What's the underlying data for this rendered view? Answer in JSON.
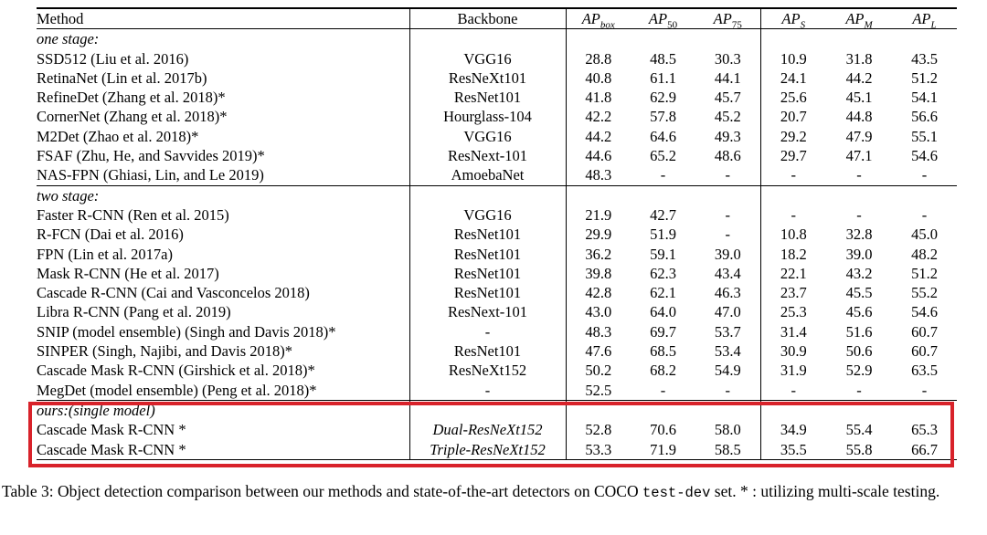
{
  "colors": {
    "highlight_border": "#d8222a",
    "rule": "#000000"
  },
  "table": {
    "columns": [
      {
        "key": "method",
        "label": "Method"
      },
      {
        "key": "backbone",
        "label": "Backbone"
      },
      {
        "key": "ap_box",
        "base": "AP",
        "sub": "box",
        "sub_style": "italic"
      },
      {
        "key": "ap_50",
        "base": "AP",
        "sub": "50",
        "sub_style": "normal"
      },
      {
        "key": "ap_75",
        "base": "AP",
        "sub": "75",
        "sub_style": "normal"
      },
      {
        "key": "ap_s",
        "base": "AP",
        "sub": "S",
        "sub_style": "italic"
      },
      {
        "key": "ap_m",
        "base": "AP",
        "sub": "M",
        "sub_style": "italic"
      },
      {
        "key": "ap_l",
        "base": "AP",
        "sub": "L",
        "sub_style": "italic"
      }
    ],
    "sections": [
      {
        "label": "one stage:",
        "highlighted": false,
        "rows": [
          {
            "method": "SSD512 (Liu et al. 2016)",
            "backbone": "VGG16",
            "emphasis": false,
            "values": [
              "28.8",
              "48.5",
              "30.3",
              "10.9",
              "31.8",
              "43.5"
            ]
          },
          {
            "method": "RetinaNet (Lin et al. 2017b)",
            "backbone": "ResNeXt101",
            "emphasis": false,
            "values": [
              "40.8",
              "61.1",
              "44.1",
              "24.1",
              "44.2",
              "51.2"
            ]
          },
          {
            "method": "RefineDet (Zhang et al. 2018)*",
            "backbone": "ResNet101",
            "emphasis": false,
            "values": [
              "41.8",
              "62.9",
              "45.7",
              "25.6",
              "45.1",
              "54.1"
            ]
          },
          {
            "method": "CornerNet (Zhang et al. 2018)*",
            "backbone": "Hourglass-104",
            "emphasis": false,
            "values": [
              "42.2",
              "57.8",
              "45.2",
              "20.7",
              "44.8",
              "56.6"
            ]
          },
          {
            "method": "M2Det (Zhao et al. 2018)*",
            "backbone": "VGG16",
            "emphasis": false,
            "values": [
              "44.2",
              "64.6",
              "49.3",
              "29.2",
              "47.9",
              "55.1"
            ]
          },
          {
            "method": "FSAF (Zhu, He, and Savvides 2019)*",
            "backbone": "ResNext-101",
            "emphasis": false,
            "values": [
              "44.6",
              "65.2",
              "48.6",
              "29.7",
              "47.1",
              "54.6"
            ]
          },
          {
            "method": "NAS-FPN (Ghiasi, Lin, and Le 2019)",
            "backbone": "AmoebaNet",
            "emphasis": false,
            "values": [
              "48.3",
              "-",
              "-",
              "-",
              "-",
              "-"
            ]
          }
        ]
      },
      {
        "label": "two stage:",
        "highlighted": false,
        "rows": [
          {
            "method": "Faster R-CNN (Ren et al. 2015)",
            "backbone": "VGG16",
            "emphasis": false,
            "values": [
              "21.9",
              "42.7",
              "-",
              "-",
              "-",
              "-"
            ]
          },
          {
            "method": "R-FCN (Dai et al. 2016)",
            "backbone": "ResNet101",
            "emphasis": false,
            "values": [
              "29.9",
              "51.9",
              "-",
              "10.8",
              "32.8",
              "45.0"
            ]
          },
          {
            "method": "FPN (Lin et al. 2017a)",
            "backbone": "ResNet101",
            "emphasis": false,
            "values": [
              "36.2",
              "59.1",
              "39.0",
              "18.2",
              "39.0",
              "48.2"
            ]
          },
          {
            "method": "Mask R-CNN (He et al. 2017)",
            "backbone": "ResNet101",
            "emphasis": false,
            "values": [
              "39.8",
              "62.3",
              "43.4",
              "22.1",
              "43.2",
              "51.2"
            ]
          },
          {
            "method": "Cascade R-CNN (Cai and Vasconcelos 2018)",
            "backbone": "ResNet101",
            "emphasis": false,
            "values": [
              "42.8",
              "62.1",
              "46.3",
              "23.7",
              "45.5",
              "55.2"
            ]
          },
          {
            "method": "Libra R-CNN (Pang et al. 2019)",
            "backbone": "ResNext-101",
            "emphasis": false,
            "values": [
              "43.0",
              "64.0",
              "47.0",
              "25.3",
              "45.6",
              "54.6"
            ]
          },
          {
            "method": "SNIP (model ensemble) (Singh and Davis 2018)*",
            "backbone": "-",
            "emphasis": false,
            "values": [
              "48.3",
              "69.7",
              "53.7",
              "31.4",
              "51.6",
              "60.7"
            ]
          },
          {
            "method": "SINPER (Singh, Najibi, and Davis 2018)*",
            "backbone": "ResNet101",
            "emphasis": false,
            "values": [
              "47.6",
              "68.5",
              "53.4",
              "30.9",
              "50.6",
              "60.7"
            ]
          },
          {
            "method": "Cascade Mask R-CNN (Girshick et al. 2018)*",
            "backbone": "ResNeXt152",
            "emphasis": false,
            "values": [
              "50.2",
              "68.2",
              "54.9",
              "31.9",
              "52.9",
              "63.5"
            ]
          },
          {
            "method": "MegDet (model ensemble) (Peng et al. 2018)*",
            "backbone": "-",
            "emphasis": false,
            "values": [
              "52.5",
              "-",
              "-",
              "-",
              "-",
              "-"
            ]
          }
        ]
      },
      {
        "label": "ours:(single model)",
        "highlighted": true,
        "rows": [
          {
            "method": "Cascade Mask R-CNN *",
            "backbone": "Dual-ResNeXt152",
            "emphasis": true,
            "values": [
              "52.8",
              "70.6",
              "58.0",
              "34.9",
              "55.4",
              "65.3"
            ]
          },
          {
            "method": "Cascade Mask R-CNN *",
            "backbone": "Triple-ResNeXt152",
            "emphasis": true,
            "values": [
              "53.3",
              "71.9",
              "58.5",
              "35.5",
              "55.8",
              "66.7"
            ]
          }
        ]
      }
    ]
  },
  "caption": {
    "prefix": "Table 3: Object detection comparison between our methods and state-of-the-art detectors on COCO ",
    "code": "test-dev",
    "suffix": " set. * : utilizing multi-scale testing."
  }
}
